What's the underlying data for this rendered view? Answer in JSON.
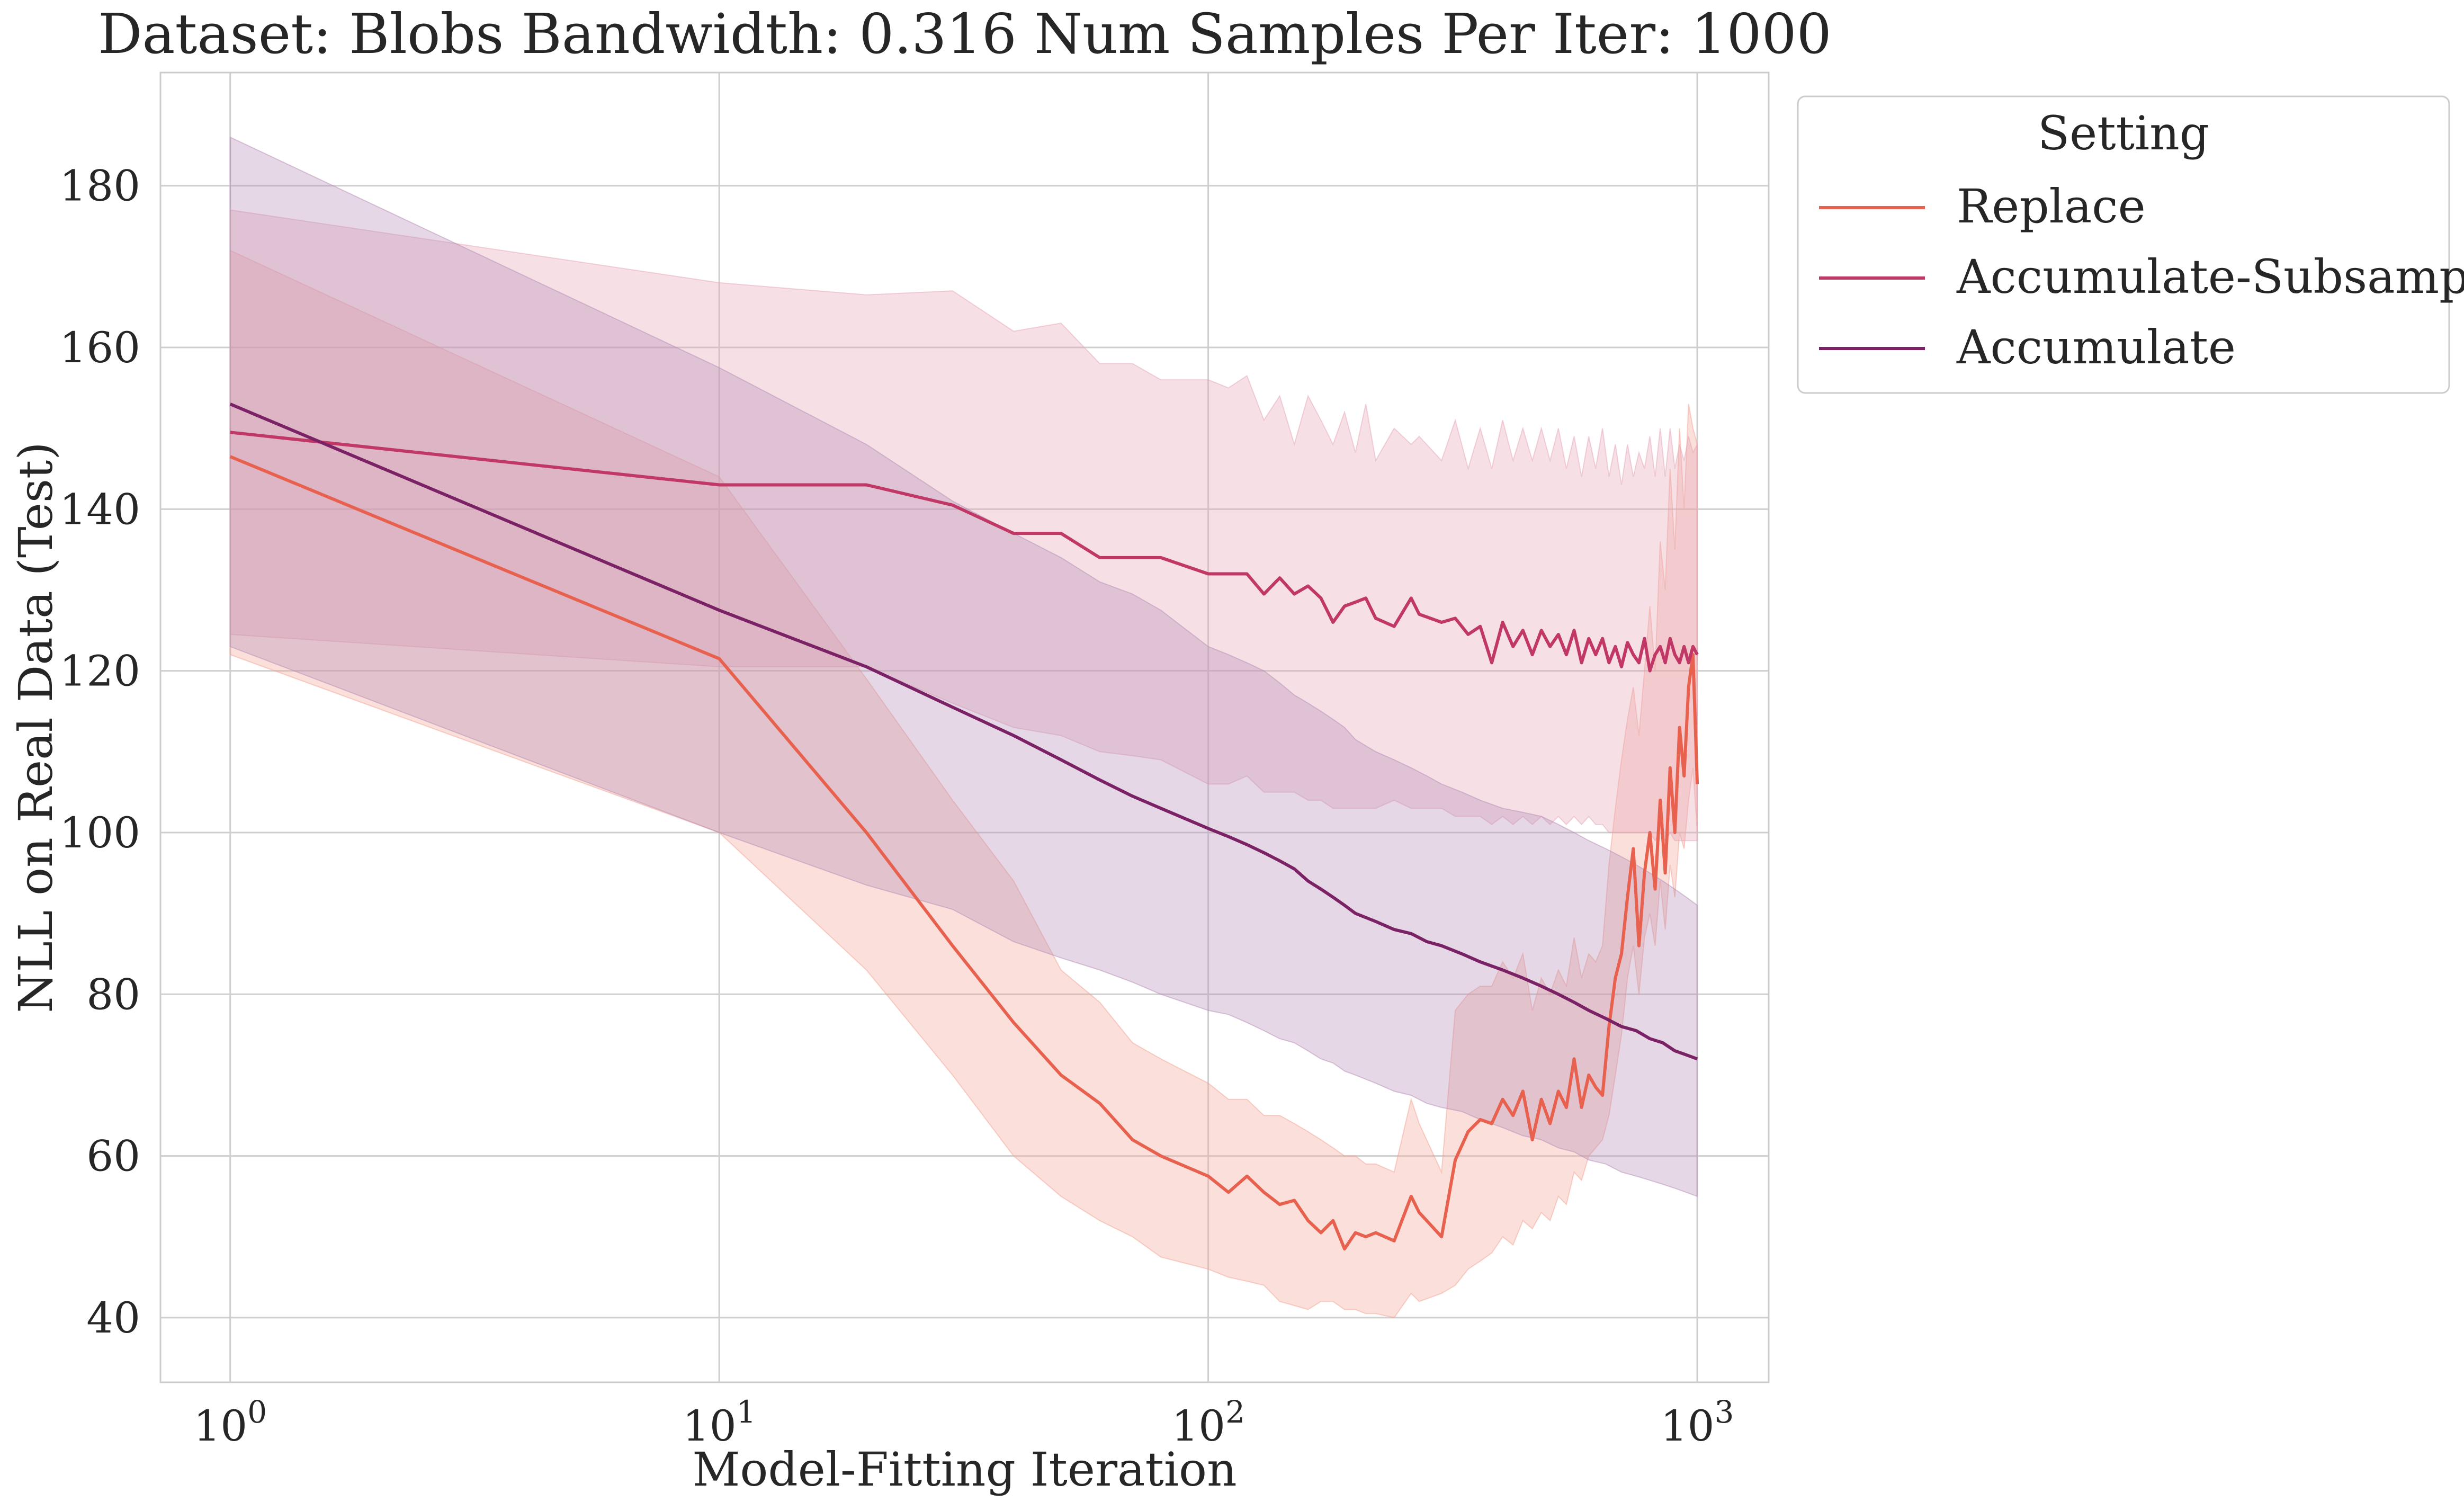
{
  "chart_data": {
    "type": "line",
    "title": "Dataset: Blobs Bandwidth: 0.316 Num Samples Per Iter: 1000",
    "xlabel": "Model-Fitting Iteration",
    "ylabel": "NLL on Real Data (Test)",
    "xscale": "log",
    "xlim": [
      0.72,
      1400
    ],
    "ylim": [
      32,
      194
    ],
    "grid": true,
    "x_ticks": [
      {
        "value": 1,
        "base": "10",
        "exp": "0"
      },
      {
        "value": 10,
        "base": "10",
        "exp": "1"
      },
      {
        "value": 100,
        "base": "10",
        "exp": "2"
      },
      {
        "value": 1000,
        "base": "10",
        "exp": "3"
      }
    ],
    "y_ticks": [
      40,
      60,
      80,
      100,
      120,
      140,
      160,
      180
    ],
    "legend": {
      "title": "Setting",
      "position": "outside-right"
    },
    "series": [
      {
        "name": "Replace",
        "color": "#e8604e",
        "band_color": "#f3a494",
        "x": [
          1,
          10,
          20,
          30,
          40,
          50,
          60,
          70,
          80,
          100,
          110,
          120,
          130,
          140,
          150,
          160,
          170,
          180,
          190,
          200,
          210,
          220,
          240,
          260,
          270,
          300,
          320,
          340,
          360,
          380,
          400,
          420,
          440,
          460,
          480,
          500,
          520,
          540,
          560,
          580,
          600,
          620,
          640,
          660,
          680,
          700,
          720,
          740,
          760,
          780,
          800,
          820,
          840,
          860,
          880,
          900,
          920,
          940,
          960,
          980,
          1000
        ],
        "y": [
          146.5,
          121.5,
          100,
          86,
          76.5,
          70,
          66.5,
          62,
          60,
          57.5,
          55.5,
          57.5,
          55.5,
          54,
          54.5,
          52,
          50.5,
          52,
          48.5,
          50.5,
          50,
          50.5,
          49.5,
          55,
          53,
          50,
          59.5,
          63,
          64.5,
          64,
          67,
          65,
          68,
          62,
          67,
          64,
          68,
          66,
          72,
          66,
          70,
          68.5,
          67.5,
          76,
          82,
          85,
          92,
          98,
          86,
          95,
          100,
          93,
          104,
          95,
          108,
          100,
          113,
          107,
          118,
          122,
          106
        ],
        "lower": [
          122,
          100,
          83,
          70,
          60,
          55,
          52,
          50,
          47.5,
          46,
          45,
          44.5,
          44,
          42,
          41.5,
          41,
          42,
          42,
          41,
          41,
          40.5,
          40.5,
          40,
          43,
          42,
          43,
          44,
          46,
          47,
          48,
          50,
          49,
          52,
          51,
          53,
          52,
          55,
          54,
          58,
          57,
          60,
          61,
          62,
          65,
          70,
          75,
          82,
          86,
          80,
          87,
          90,
          86,
          94,
          88,
          96,
          92,
          100,
          98,
          104,
          108,
          100
        ],
        "upper": [
          172,
          144,
          119,
          104,
          94,
          83,
          79,
          74,
          72,
          69,
          67,
          67,
          65,
          65,
          64,
          63,
          62,
          61,
          60,
          60,
          59,
          59,
          58,
          67,
          64,
          58,
          78,
          80,
          81,
          81,
          84,
          82,
          85,
          78,
          82,
          80,
          83,
          81,
          87,
          82,
          85,
          84,
          86,
          96,
          103,
          109,
          114,
          118,
          112,
          120,
          128,
          120,
          136,
          130,
          145,
          135,
          150,
          140,
          153,
          150,
          148
        ]
      },
      {
        "name": "Accumulate-Subsample",
        "color": "#c13765",
        "band_color": "#e6a6b8",
        "x": [
          1,
          10,
          20,
          30,
          40,
          50,
          60,
          70,
          80,
          100,
          110,
          120,
          130,
          140,
          150,
          160,
          170,
          180,
          190,
          200,
          210,
          220,
          240,
          260,
          270,
          300,
          320,
          340,
          360,
          380,
          400,
          420,
          440,
          460,
          480,
          500,
          520,
          540,
          560,
          580,
          600,
          620,
          640,
          660,
          680,
          700,
          720,
          740,
          760,
          780,
          800,
          820,
          840,
          860,
          880,
          900,
          920,
          940,
          960,
          980,
          1000
        ],
        "y": [
          149.5,
          143,
          143,
          140.5,
          137,
          137,
          134,
          134,
          134,
          132,
          132,
          132,
          129.5,
          131.5,
          129.5,
          130.5,
          129,
          126,
          128,
          128.5,
          129,
          126.5,
          125.5,
          129,
          127,
          126,
          126.5,
          124.5,
          125.5,
          121,
          126,
          123,
          125,
          122,
          125,
          123,
          124.5,
          122,
          125,
          121,
          124,
          122,
          124,
          121,
          123,
          120.5,
          123.5,
          122,
          121,
          124,
          120,
          122,
          123,
          121,
          124,
          122,
          121,
          123,
          121,
          123,
          122
        ],
        "lower": [
          124.5,
          120.5,
          120.5,
          116,
          113,
          112,
          110,
          109.5,
          109,
          106,
          106,
          107,
          105,
          105,
          105,
          104,
          104,
          103,
          103,
          103,
          103,
          103,
          104,
          103,
          103,
          103,
          102,
          102,
          102,
          101,
          102,
          101,
          102,
          101,
          102,
          101,
          102,
          101,
          102,
          101,
          102,
          101,
          101,
          100,
          100,
          100,
          100,
          100,
          100,
          100,
          100,
          99,
          100,
          99,
          100,
          99,
          99,
          99,
          99,
          99,
          99
        ],
        "upper": [
          177,
          168,
          166.5,
          167,
          162,
          163,
          158,
          158,
          156,
          156,
          155,
          156.5,
          151,
          154,
          148,
          154,
          151,
          148,
          152,
          147,
          153,
          146,
          150,
          148,
          149,
          146,
          151,
          145,
          150,
          145,
          151,
          146,
          150,
          146,
          150,
          146,
          150,
          145,
          149,
          144,
          149,
          145,
          150,
          144,
          148,
          143,
          148,
          144,
          147,
          145,
          149,
          144,
          150,
          144,
          150,
          145,
          148,
          146,
          149,
          147,
          148
        ]
      },
      {
        "name": "Accumulate",
        "color": "#7b2165",
        "band_color": "#b58db5",
        "x": [
          1,
          10,
          20,
          30,
          40,
          50,
          60,
          70,
          80,
          100,
          110,
          120,
          130,
          140,
          150,
          160,
          170,
          180,
          190,
          200,
          220,
          240,
          260,
          280,
          300,
          330,
          360,
          400,
          440,
          480,
          520,
          560,
          600,
          650,
          700,
          750,
          800,
          850,
          900,
          950,
          1000
        ],
        "y": [
          153,
          127.5,
          120.5,
          115.5,
          112,
          109,
          106.5,
          104.5,
          103,
          100.5,
          99.5,
          98.5,
          97.5,
          96.5,
          95.5,
          94,
          93,
          92,
          91,
          90,
          89,
          88,
          87.5,
          86.5,
          86,
          85,
          84,
          83,
          82,
          81,
          80,
          79,
          78,
          77,
          76,
          75.5,
          74.5,
          74,
          73,
          72.5,
          72
        ],
        "lower": [
          123,
          100,
          93.5,
          90.5,
          86.5,
          84.5,
          83,
          81.5,
          80,
          78,
          77.5,
          76.5,
          75.5,
          74.5,
          74,
          73,
          72,
          71.5,
          70.5,
          70,
          69,
          68,
          67.5,
          66.5,
          66,
          65.5,
          64.5,
          63.5,
          62.5,
          62,
          61,
          60.5,
          59.5,
          59,
          58,
          57.5,
          57,
          56.5,
          56,
          55.5,
          55
        ],
        "upper": [
          186,
          157.5,
          148,
          141,
          137,
          134,
          131,
          129.5,
          127.5,
          123,
          122,
          121,
          120,
          118.5,
          117,
          116,
          115,
          114,
          113,
          111.5,
          110,
          109,
          108,
          107,
          106,
          105,
          104,
          103,
          102.5,
          102,
          101,
          100,
          99,
          98,
          97,
          96,
          95,
          94,
          93,
          92,
          91
        ]
      }
    ]
  }
}
